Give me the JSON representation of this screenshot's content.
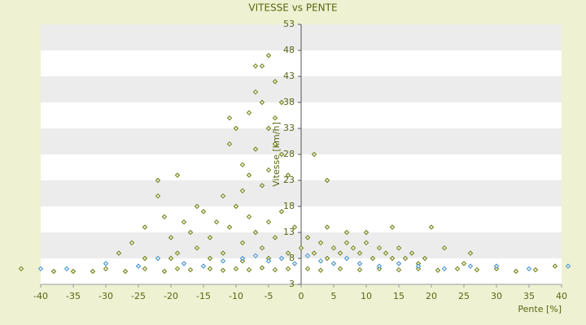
{
  "chart_data": {
    "type": "scatter",
    "title": "VITESSE vs PENTE",
    "x_label": "Pente [%]",
    "y_label": "Vitesse [km/h]",
    "xlim": [
      -40,
      40
    ],
    "xticks": [
      -40,
      -35,
      -30,
      -25,
      -20,
      -15,
      -10,
      -5,
      0,
      5,
      10,
      15,
      20,
      25,
      30,
      35,
      40
    ],
    "ylim": [
      3,
      53
    ],
    "yticks": [
      3,
      8,
      13,
      18,
      23,
      28,
      33,
      38,
      43,
      48,
      53
    ],
    "grid": true,
    "series": [
      {
        "color": "#6b7a12",
        "x": [
          -43,
          -38,
          -35,
          -32,
          -30,
          -27,
          -24,
          -21,
          -19,
          -17,
          -14,
          -12,
          -10,
          -8,
          -6,
          -4,
          -2,
          1,
          3,
          6,
          9,
          12,
          15,
          18,
          21,
          24,
          27,
          30,
          33,
          36,
          39,
          -28,
          -26,
          -24,
          -22,
          -21,
          -20,
          -19,
          -18,
          -17,
          -16,
          -15,
          -14,
          -13,
          -12,
          -11,
          -10,
          -9,
          -8,
          -7,
          -6,
          -5,
          -4,
          -3,
          -2,
          -1,
          -16,
          -12,
          -20,
          -24,
          -9,
          -5,
          -14,
          -11,
          -10,
          -9,
          -8,
          -7,
          -6,
          -5,
          -6,
          -4,
          -5,
          -7,
          -8,
          -4,
          -3,
          -6,
          -9,
          -5,
          -4,
          -3,
          -7,
          -11,
          -2,
          -22,
          -19,
          0,
          1,
          2,
          3,
          4,
          5,
          6,
          7,
          8,
          9,
          10,
          11,
          12,
          13,
          14,
          15,
          16,
          17,
          18,
          19,
          4,
          7,
          10,
          14,
          20,
          26,
          2,
          4,
          22,
          25
        ],
        "values": [
          6,
          5.5,
          5.5,
          5.5,
          6,
          5.5,
          6,
          5.5,
          6,
          5.8,
          6,
          5.7,
          6,
          5.8,
          6.2,
          5.8,
          6,
          6,
          5.7,
          6,
          5.8,
          6,
          5.8,
          6,
          5.7,
          6,
          5.8,
          6,
          5.5,
          5.8,
          6.5,
          9,
          11,
          14,
          20,
          16,
          12,
          9,
          15,
          13,
          10,
          17,
          12,
          15,
          9,
          14,
          18,
          11,
          16,
          13,
          10,
          15,
          12,
          17,
          9,
          14,
          18,
          20,
          8,
          8,
          7.5,
          8,
          8,
          30,
          33,
          26,
          36,
          40,
          45,
          47,
          38,
          42,
          33,
          29,
          24,
          35,
          28,
          22,
          21,
          25,
          30,
          38,
          45,
          35,
          24,
          23,
          24,
          10,
          12,
          9,
          11,
          8,
          10,
          9,
          11,
          10,
          9,
          11,
          8,
          10,
          9,
          8,
          10,
          8,
          9,
          7,
          8,
          14,
          13,
          13,
          14,
          14,
          9,
          28,
          23,
          10,
          7
        ]
      },
      {
        "color": "#3a8fd8",
        "x": [
          -40,
          -36,
          -30,
          -25,
          -22,
          -18,
          -15,
          -12,
          -9,
          -7,
          -5,
          -3,
          -1,
          1,
          3,
          5,
          7,
          9,
          12,
          15,
          18,
          22,
          26,
          30,
          35,
          41
        ],
        "values": [
          6,
          6,
          7,
          6.5,
          8,
          7,
          6.5,
          7.5,
          8,
          8.5,
          7.5,
          8,
          7,
          8.5,
          7.5,
          7,
          8,
          7,
          6.5,
          7,
          6.5,
          6,
          6.5,
          6.5,
          6,
          6.5
        ]
      }
    ]
  }
}
